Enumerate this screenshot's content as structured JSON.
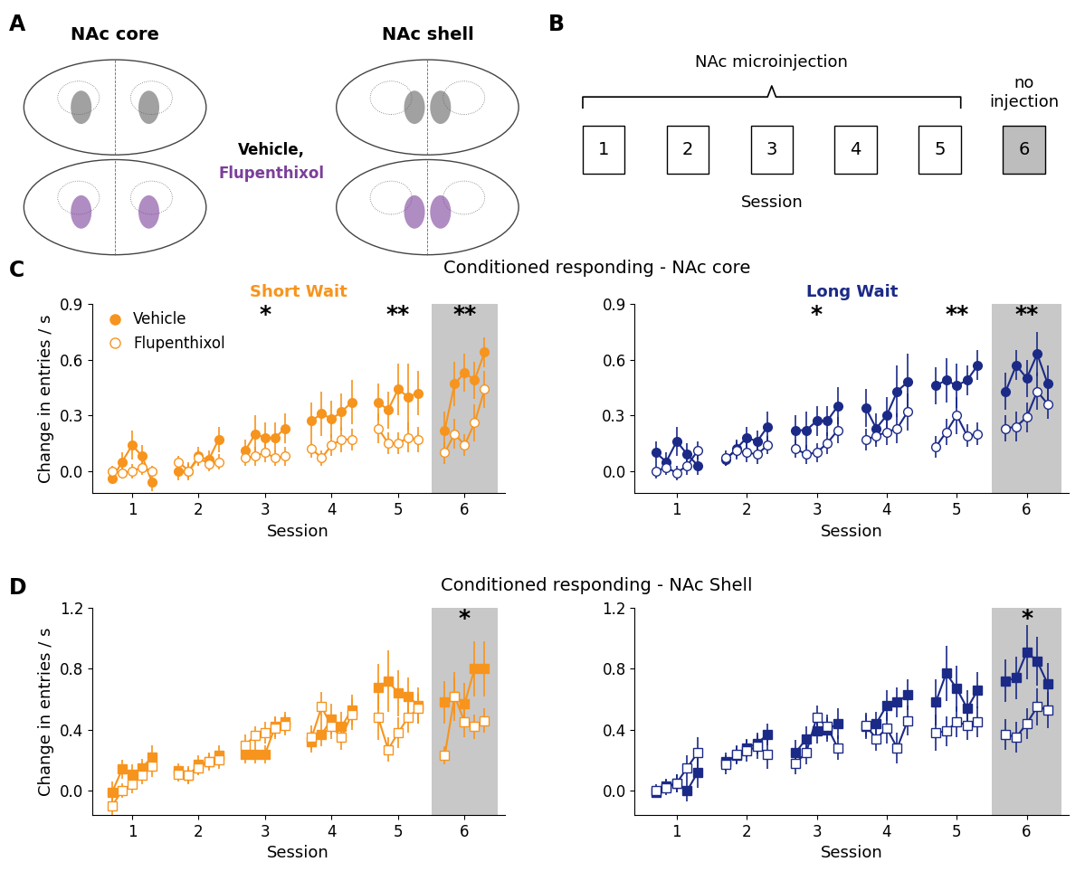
{
  "panel_labels": [
    "A",
    "B",
    "C",
    "D"
  ],
  "panel_a": {
    "regions": [
      "NAc core",
      "NAc shell"
    ],
    "treatments": [
      {
        "text": "Vehicle,",
        "color": "#000000"
      },
      {
        "text": "Flupenthixol",
        "color": "#7B3F99"
      }
    ]
  },
  "panel_b": {
    "sessions": [
      1,
      2,
      3,
      4,
      5,
      6
    ],
    "injected_sessions": [
      1,
      2,
      3,
      4,
      5
    ],
    "uninjected_sessions": [
      6
    ],
    "injected_label": "NAc microinjection",
    "uninjected_label": "no\ninjection",
    "xlabel": "Session"
  },
  "row_titles": [
    "Conditioned responding - NAc core",
    "Conditioned responding - NAc Shell"
  ],
  "chart_data": [
    {
      "type": "line",
      "title": "Short Wait",
      "color": "#F7941D",
      "xlabel": "Session",
      "ylabel": "Change in entries / s",
      "x": [
        1,
        2,
        3,
        4,
        5,
        6
      ],
      "xlim": [
        0.4,
        6.6
      ],
      "xticks": [
        1,
        2,
        3,
        4,
        5,
        6
      ],
      "ylim": [
        -0.12,
        0.9
      ],
      "yticks": [
        0.0,
        0.3,
        0.6,
        0.9
      ],
      "legend": "upper left",
      "shaded_sessions": [
        6
      ],
      "annotations": [
        {
          "x": 3,
          "text": "*"
        },
        {
          "x": 5,
          "text": "**"
        },
        {
          "x": 6,
          "text": "**"
        }
      ],
      "series": [
        {
          "name": "Vehicle",
          "color": "#F7941D",
          "marker": "filled_circle",
          "values": [
            [
              -0.04,
              0.05,
              0.14,
              0.08,
              -0.06
            ],
            [
              0.0,
              0.0,
              0.08,
              0.06,
              0.17
            ],
            [
              0.11,
              0.2,
              0.18,
              0.18,
              0.23
            ],
            [
              0.27,
              0.31,
              0.28,
              0.32,
              0.37
            ],
            [
              0.37,
              0.33,
              0.44,
              0.4,
              0.42
            ],
            [
              0.22,
              0.47,
              0.53,
              0.49,
              0.64
            ]
          ],
          "errors": [
            [
              0.03,
              0.05,
              0.08,
              0.06,
              0.05
            ],
            [
              0.05,
              0.05,
              0.05,
              0.05,
              0.07
            ],
            [
              0.06,
              0.1,
              0.08,
              0.08,
              0.08
            ],
            [
              0.1,
              0.12,
              0.1,
              0.1,
              0.12
            ],
            [
              0.1,
              0.1,
              0.14,
              0.18,
              0.12
            ],
            [
              0.1,
              0.12,
              0.1,
              0.1,
              0.08
            ]
          ]
        },
        {
          "name": "Flupenthixol",
          "color": "#F7941D",
          "marker": "open_circle",
          "values": [
            [
              0.0,
              -0.01,
              0.0,
              0.02,
              0.0
            ],
            [
              0.05,
              0.0,
              0.07,
              0.04,
              0.05
            ],
            [
              0.07,
              0.08,
              0.1,
              0.07,
              0.08
            ],
            [
              0.12,
              0.07,
              0.14,
              0.17,
              0.17
            ],
            [
              0.23,
              0.15,
              0.15,
              0.18,
              0.17
            ],
            [
              0.1,
              0.2,
              0.14,
              0.26,
              0.44
            ]
          ],
          "errors": [
            [
              0.03,
              0.03,
              0.04,
              0.04,
              0.03
            ],
            [
              0.03,
              0.04,
              0.04,
              0.04,
              0.04
            ],
            [
              0.04,
              0.05,
              0.05,
              0.04,
              0.05
            ],
            [
              0.05,
              0.04,
              0.06,
              0.07,
              0.06
            ],
            [
              0.08,
              0.06,
              0.06,
              0.08,
              0.07
            ],
            [
              0.06,
              0.08,
              0.06,
              0.1,
              0.1
            ]
          ]
        }
      ]
    },
    {
      "type": "line",
      "title": "Long Wait",
      "color": "#1B2A87",
      "xlabel": "Session",
      "x": [
        1,
        2,
        3,
        4,
        5,
        6
      ],
      "xlim": [
        0.4,
        6.6
      ],
      "xticks": [
        1,
        2,
        3,
        4,
        5,
        6
      ],
      "ylim": [
        -0.12,
        0.9
      ],
      "yticks": [
        0.0,
        0.3,
        0.6,
        0.9
      ],
      "shaded_sessions": [
        6
      ],
      "annotations": [
        {
          "x": 3,
          "text": "*"
        },
        {
          "x": 5,
          "text": "**"
        },
        {
          "x": 6,
          "text": "**"
        }
      ],
      "series": [
        {
          "name": "Vehicle",
          "color": "#1B2A87",
          "marker": "filled_circle",
          "values": [
            [
              0.1,
              0.05,
              0.16,
              0.09,
              0.03
            ],
            [
              0.06,
              0.12,
              0.18,
              0.16,
              0.24
            ],
            [
              0.22,
              0.22,
              0.27,
              0.27,
              0.35
            ],
            [
              0.34,
              0.23,
              0.3,
              0.43,
              0.48
            ],
            [
              0.46,
              0.49,
              0.46,
              0.49,
              0.57
            ],
            [
              0.43,
              0.57,
              0.5,
              0.63,
              0.47
            ]
          ],
          "errors": [
            [
              0.06,
              0.05,
              0.08,
              0.06,
              0.05
            ],
            [
              0.03,
              0.05,
              0.06,
              0.06,
              0.08
            ],
            [
              0.08,
              0.1,
              0.08,
              0.08,
              0.1
            ],
            [
              0.1,
              0.08,
              0.1,
              0.14,
              0.15
            ],
            [
              0.1,
              0.12,
              0.12,
              0.08,
              0.08
            ],
            [
              0.1,
              0.08,
              0.1,
              0.12,
              0.1
            ]
          ]
        },
        {
          "name": "Flupenthixol",
          "color": "#1B2A87",
          "marker": "open_circle",
          "values": [
            [
              0.0,
              0.02,
              -0.01,
              0.03,
              0.11
            ],
            [
              0.07,
              0.11,
              0.1,
              0.09,
              0.14
            ],
            [
              0.12,
              0.09,
              0.1,
              0.15,
              0.22
            ],
            [
              0.17,
              0.19,
              0.21,
              0.23,
              0.32
            ],
            [
              0.13,
              0.21,
              0.3,
              0.19,
              0.2
            ],
            [
              0.23,
              0.24,
              0.29,
              0.43,
              0.36
            ]
          ],
          "errors": [
            [
              0.04,
              0.04,
              0.04,
              0.05,
              0.05
            ],
            [
              0.04,
              0.05,
              0.05,
              0.05,
              0.05
            ],
            [
              0.05,
              0.05,
              0.05,
              0.06,
              0.07
            ],
            [
              0.06,
              0.06,
              0.07,
              0.08,
              0.1
            ],
            [
              0.06,
              0.07,
              0.1,
              0.06,
              0.06
            ],
            [
              0.07,
              0.08,
              0.08,
              0.1,
              0.08
            ]
          ]
        }
      ]
    },
    {
      "type": "line",
      "color": "#F7941D",
      "xlabel": "Session",
      "ylabel": "Change in entries / s",
      "x": [
        1,
        2,
        3,
        4,
        5,
        6
      ],
      "xlim": [
        0.4,
        6.6
      ],
      "xticks": [
        1,
        2,
        3,
        4,
        5,
        6
      ],
      "ylim": [
        -0.16,
        1.2
      ],
      "yticks": [
        0.0,
        0.4,
        0.8,
        1.2
      ],
      "shaded_sessions": [
        6
      ],
      "annotations": [
        {
          "x": 6,
          "text": "*"
        }
      ],
      "series": [
        {
          "name": "Vehicle",
          "color": "#F7941D",
          "marker": "filled_square",
          "values": [
            [
              -0.01,
              0.14,
              0.11,
              0.15,
              0.22
            ],
            [
              0.13,
              0.1,
              0.17,
              0.19,
              0.23
            ],
            [
              0.24,
              0.24,
              0.24,
              0.42,
              0.45
            ],
            [
              0.32,
              0.37,
              0.47,
              0.42,
              0.53
            ],
            [
              0.68,
              0.72,
              0.64,
              0.62,
              0.56
            ],
            [
              0.58,
              0.62,
              0.57,
              0.8,
              0.8
            ]
          ],
          "errors": [
            [
              0.07,
              0.06,
              0.06,
              0.06,
              0.08
            ],
            [
              0.05,
              0.06,
              0.06,
              0.06,
              0.07
            ],
            [
              0.06,
              0.06,
              0.06,
              0.07,
              0.07
            ],
            [
              0.07,
              0.08,
              0.1,
              0.1,
              0.1
            ],
            [
              0.15,
              0.2,
              0.15,
              0.12,
              0.12
            ],
            [
              0.14,
              0.16,
              0.14,
              0.18,
              0.18
            ]
          ]
        },
        {
          "name": "Flupenthixol",
          "color": "#F7941D",
          "marker": "open_square",
          "values": [
            [
              -0.1,
              0.0,
              0.04,
              0.1,
              0.16
            ],
            [
              0.11,
              0.1,
              0.15,
              0.19,
              0.2
            ],
            [
              0.3,
              0.36,
              0.38,
              0.41,
              0.43
            ],
            [
              0.35,
              0.55,
              0.42,
              0.35,
              0.5
            ],
            [
              0.48,
              0.27,
              0.38,
              0.48,
              0.54
            ],
            [
              0.23,
              0.62,
              0.45,
              0.42,
              0.46
            ]
          ],
          "errors": [
            [
              0.06,
              0.05,
              0.06,
              0.06,
              0.07
            ],
            [
              0.05,
              0.05,
              0.05,
              0.05,
              0.06
            ],
            [
              0.07,
              0.06,
              0.07,
              0.07,
              0.07
            ],
            [
              0.08,
              0.1,
              0.08,
              0.08,
              0.1
            ],
            [
              0.15,
              0.08,
              0.1,
              0.1,
              0.1
            ],
            [
              0.06,
              0.12,
              0.1,
              0.08,
              0.08
            ]
          ]
        }
      ]
    },
    {
      "type": "line",
      "color": "#1B2A87",
      "xlabel": "Session",
      "x": [
        1,
        2,
        3,
        4,
        5,
        6
      ],
      "xlim": [
        0.4,
        6.6
      ],
      "xticks": [
        1,
        2,
        3,
        4,
        5,
        6
      ],
      "ylim": [
        -0.16,
        1.2
      ],
      "yticks": [
        0.0,
        0.4,
        0.8,
        1.2
      ],
      "shaded_sessions": [
        6
      ],
      "annotations": [
        {
          "x": 6,
          "text": "*"
        }
      ],
      "series": [
        {
          "name": "Vehicle",
          "color": "#1B2A87",
          "marker": "filled_square",
          "values": [
            [
              -0.01,
              0.03,
              0.05,
              0.0,
              0.12
            ],
            [
              0.19,
              0.23,
              0.28,
              0.31,
              0.37
            ],
            [
              0.25,
              0.34,
              0.39,
              0.4,
              0.44
            ],
            [
              0.42,
              0.44,
              0.56,
              0.58,
              0.63
            ],
            [
              0.58,
              0.77,
              0.67,
              0.54,
              0.66
            ],
            [
              0.72,
              0.74,
              0.91,
              0.85,
              0.7
            ]
          ],
          "errors": [
            [
              0.04,
              0.05,
              0.06,
              0.07,
              0.1
            ],
            [
              0.06,
              0.06,
              0.06,
              0.07,
              0.07
            ],
            [
              0.08,
              0.08,
              0.08,
              0.08,
              0.1
            ],
            [
              0.08,
              0.08,
              0.1,
              0.1,
              0.1
            ],
            [
              0.15,
              0.18,
              0.15,
              0.12,
              0.12
            ],
            [
              0.14,
              0.14,
              0.18,
              0.16,
              0.14
            ]
          ]
        },
        {
          "name": "Flupenthixol",
          "color": "#1B2A87",
          "marker": "open_square",
          "values": [
            [
              0.0,
              0.02,
              0.05,
              0.15,
              0.25
            ],
            [
              0.17,
              0.24,
              0.26,
              0.29,
              0.24
            ],
            [
              0.18,
              0.25,
              0.48,
              0.42,
              0.28
            ],
            [
              0.43,
              0.34,
              0.41,
              0.28,
              0.46
            ],
            [
              0.38,
              0.39,
              0.45,
              0.43,
              0.45
            ],
            [
              0.37,
              0.35,
              0.44,
              0.55,
              0.53
            ]
          ],
          "errors": [
            [
              0.04,
              0.05,
              0.06,
              0.08,
              0.1
            ],
            [
              0.06,
              0.06,
              0.07,
              0.08,
              0.1
            ],
            [
              0.07,
              0.08,
              0.08,
              0.08,
              0.08
            ],
            [
              0.08,
              0.08,
              0.1,
              0.1,
              0.1
            ],
            [
              0.12,
              0.1,
              0.1,
              0.1,
              0.1
            ],
            [
              0.1,
              0.1,
              0.1,
              0.12,
              0.12
            ]
          ]
        }
      ]
    }
  ]
}
